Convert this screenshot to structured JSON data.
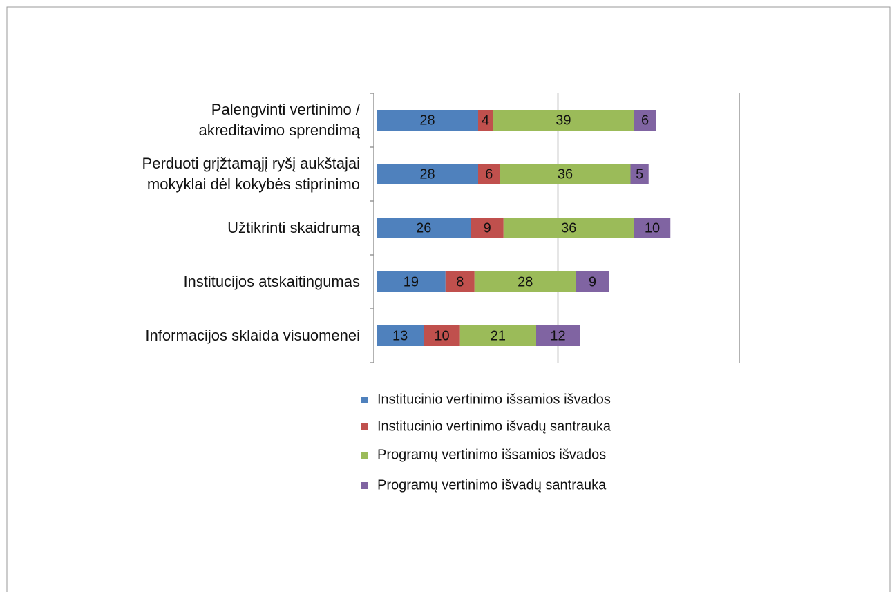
{
  "chart_data": {
    "type": "stacked_barh",
    "categories": [
      "Palengvinti vertinimo /\nakreditavimo sprendimą",
      "Perduoti grįžtamąjį ryšį aukštajai\nmokyklai dėl kokybės stiprinimo",
      "Užtikrinti skaidrumą",
      "Institucijos atskaitingumas",
      "Informacijos sklaida visuomenei"
    ],
    "series": [
      {
        "name": "Institucinio vertinimo išsamios išvados",
        "color": "#4f81bd",
        "values": [
          28,
          28,
          26,
          19,
          13
        ]
      },
      {
        "name": "Institucinio vertinimo išvadų santrauka",
        "color": "#c0504d",
        "values": [
          4,
          6,
          9,
          8,
          10
        ]
      },
      {
        "name": "Programų vertinimo išsamios išvados",
        "color": "#9bbb59",
        "values": [
          39,
          36,
          36,
          28,
          21
        ]
      },
      {
        "name": "Programų vertinimo išvadų santrauka",
        "color": "#8064a2",
        "values": [
          6,
          5,
          10,
          9,
          12
        ]
      }
    ],
    "xlim": [
      0,
      100
    ],
    "xticks": [
      0,
      50,
      100
    ],
    "grid": true,
    "legend": "bottom"
  }
}
